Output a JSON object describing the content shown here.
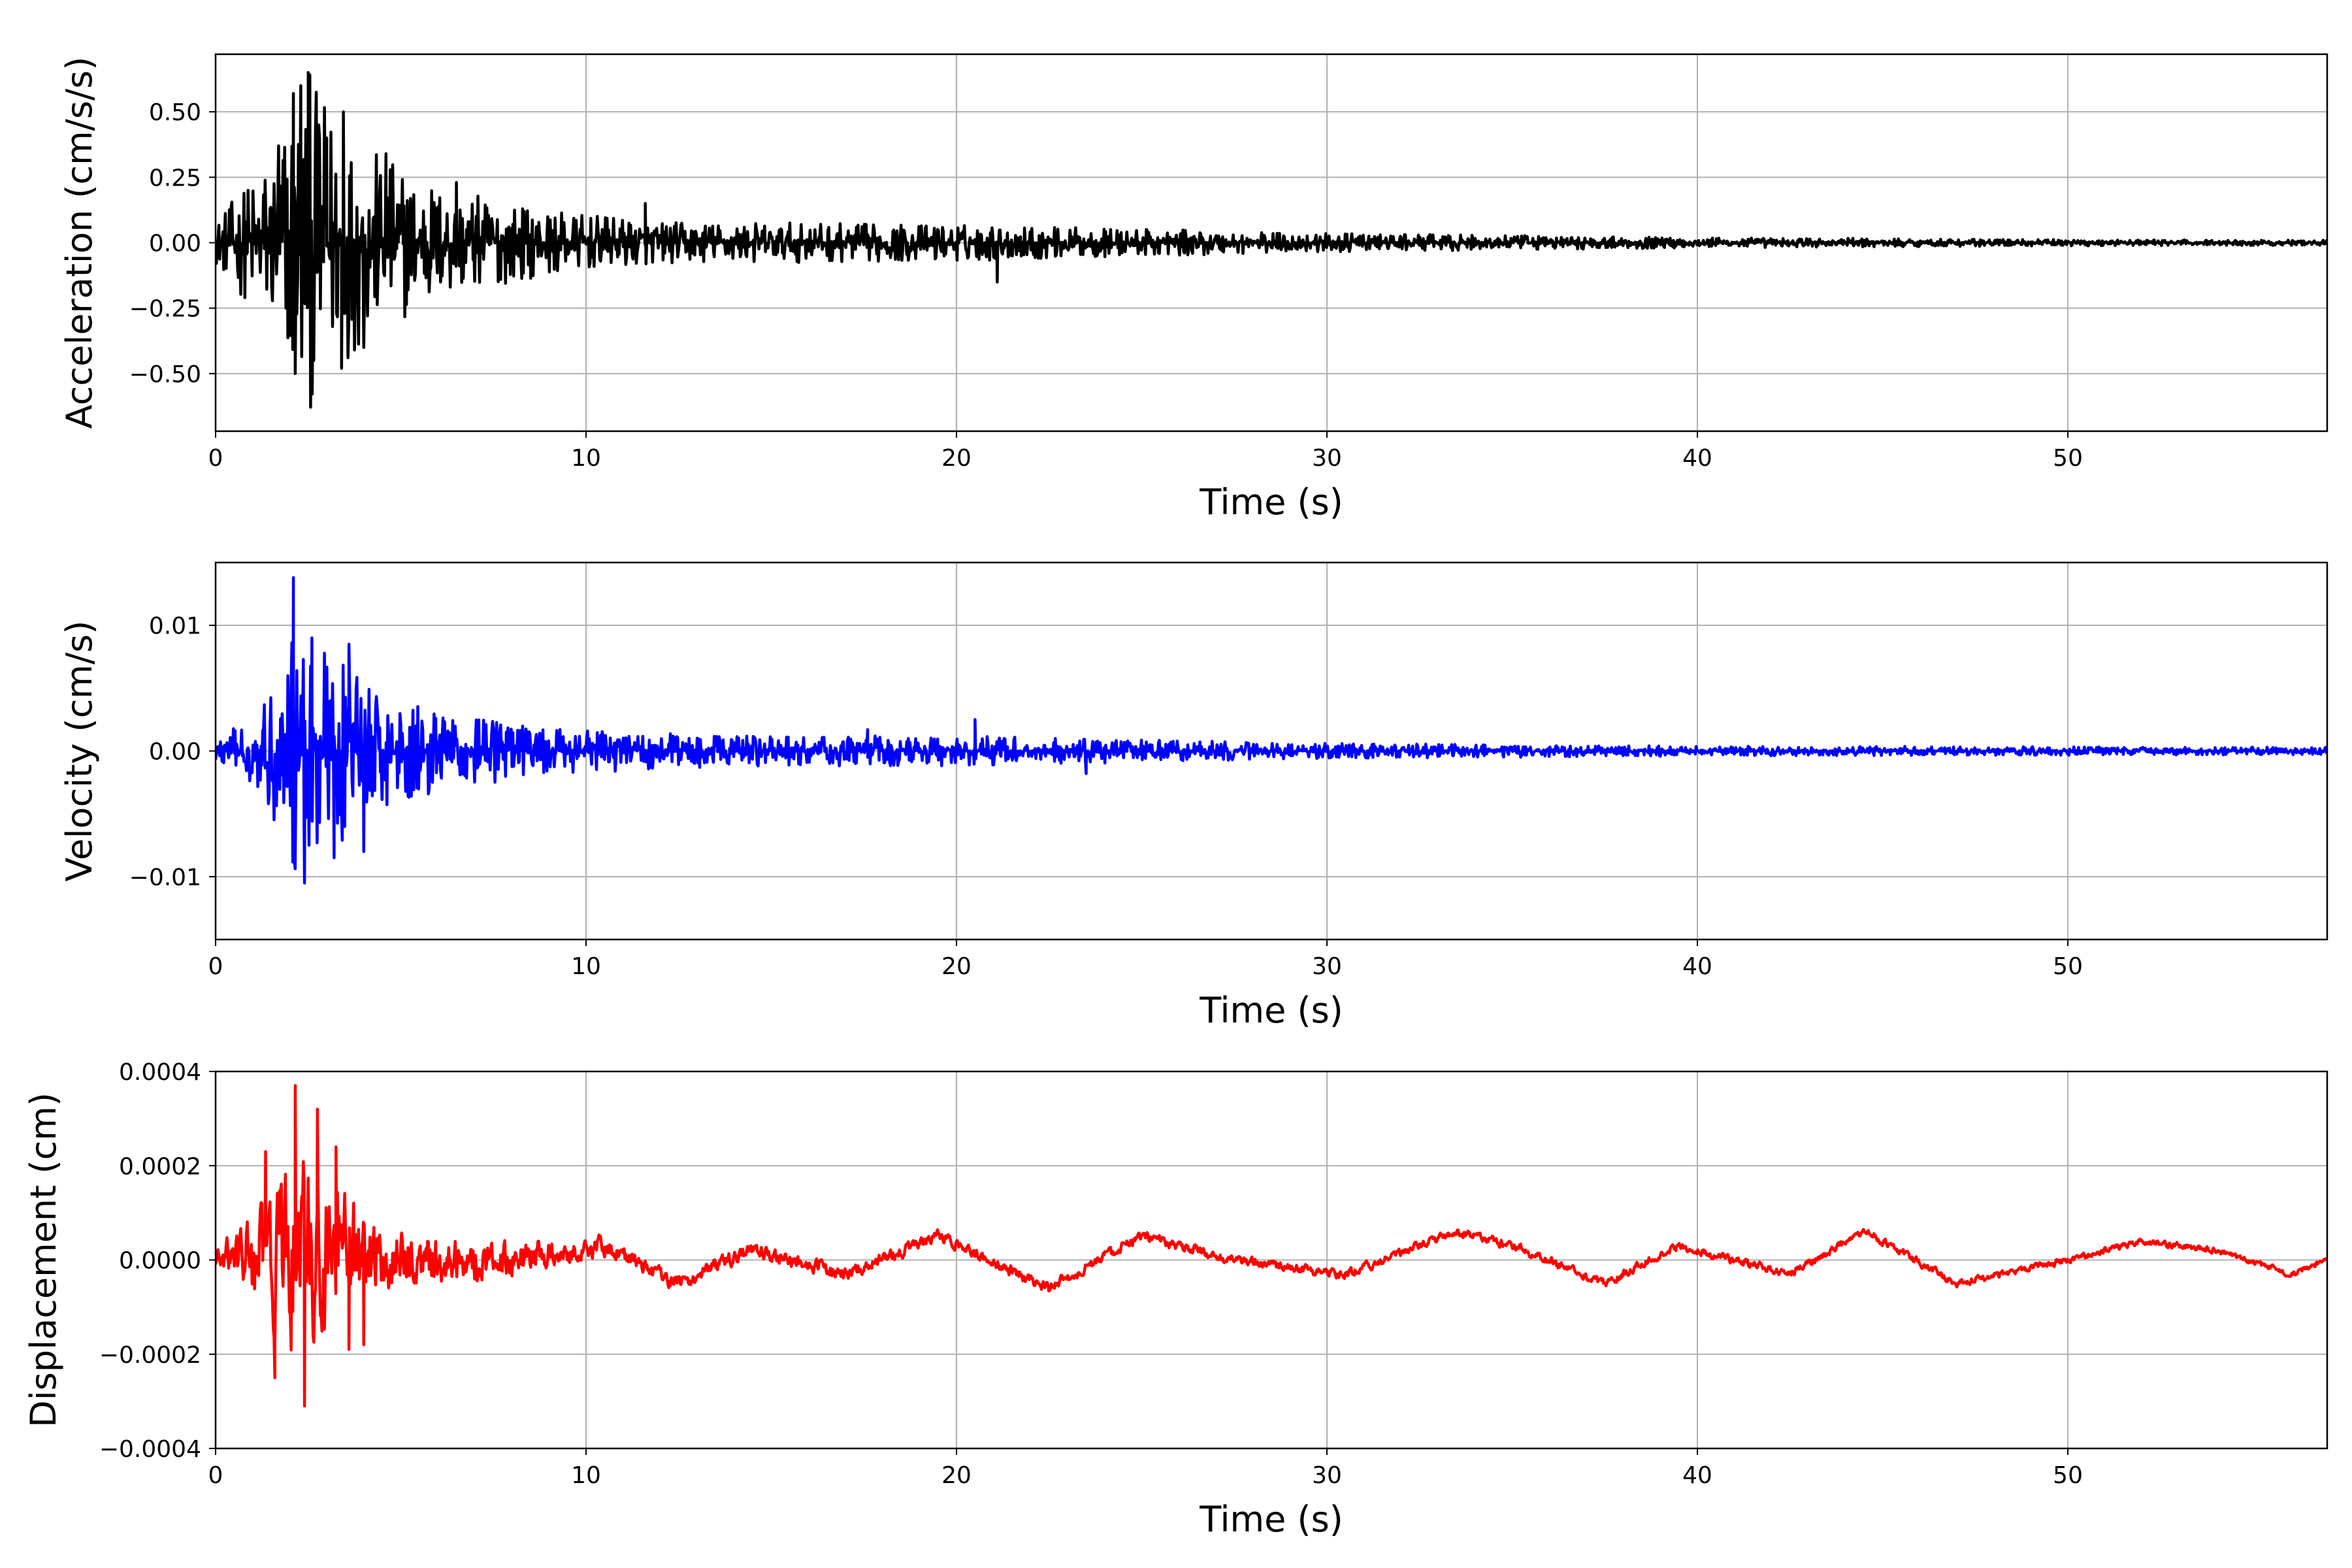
{
  "chart_data": [
    {
      "type": "line",
      "title": "",
      "xlabel": "Time (s)",
      "ylabel": "Acceleration (cm/s/s)",
      "xlim": [
        0,
        57
      ],
      "ylim": [
        -0.72,
        0.72
      ],
      "xticks": [
        0,
        10,
        20,
        30,
        40,
        50
      ],
      "xtick_labels": [
        "0",
        "10",
        "20",
        "30",
        "40",
        "50"
      ],
      "yticks": [
        -0.5,
        -0.25,
        0,
        0.25,
        0.5
      ],
      "ytick_labels": [
        "−0.50",
        "−0.25",
        "0.00",
        "0.25",
        "0.50"
      ],
      "grid": true,
      "legend": "none",
      "series": [
        {
          "color": "#000000",
          "envelope": [
            [
              0,
              0.08
            ],
            [
              1.5,
              0.35
            ],
            [
              2.1,
              0.6
            ],
            [
              2.5,
              0.65
            ],
            [
              3.5,
              0.45
            ],
            [
              4.5,
              0.33
            ],
            [
              6.5,
              0.2
            ],
            [
              9,
              0.12
            ],
            [
              12,
              0.08
            ],
            [
              20,
              0.07
            ],
            [
              30,
              0.035
            ],
            [
              40,
              0.02
            ],
            [
              50,
              0.012
            ],
            [
              57,
              0.01
            ]
          ],
          "peaks": [
            [
              1.7,
              0.37
            ],
            [
              1.9,
              -0.25
            ],
            [
              2.1,
              0.57
            ],
            [
              2.15,
              -0.5
            ],
            [
              2.3,
              0.6
            ],
            [
              2.5,
              0.65
            ],
            [
              2.65,
              -0.45
            ],
            [
              3.0,
              0.4
            ],
            [
              3.4,
              -0.48
            ],
            [
              3.45,
              0.5
            ],
            [
              4.0,
              -0.4
            ],
            [
              4.6,
              0.34
            ],
            [
              6.5,
              0.23
            ],
            [
              11.6,
              0.15
            ],
            [
              21.1,
              -0.15
            ]
          ]
        }
      ]
    },
    {
      "type": "line",
      "title": "",
      "xlabel": "Time (s)",
      "ylabel": "Velocity (cm/s)",
      "xlim": [
        0,
        57
      ],
      "ylim": [
        -0.015,
        0.015
      ],
      "xticks": [
        0,
        10,
        20,
        30,
        40,
        50
      ],
      "xtick_labels": [
        "0",
        "10",
        "20",
        "30",
        "40",
        "50"
      ],
      "yticks": [
        -0.01,
        0,
        0.01
      ],
      "ytick_labels": [
        "−0.01",
        "0.00",
        "0.01"
      ],
      "grid": true,
      "legend": "none",
      "series": [
        {
          "color": "#0000ff",
          "envelope": [
            [
              0,
              0.001
            ],
            [
              1.2,
              0.003
            ],
            [
              1.8,
              0.007
            ],
            [
              2.1,
              0.013
            ],
            [
              2.5,
              0.009
            ],
            [
              3.5,
              0.007
            ],
            [
              4.5,
              0.0045
            ],
            [
              6.5,
              0.003
            ],
            [
              9,
              0.0018
            ],
            [
              15,
              0.0012
            ],
            [
              20,
              0.0012
            ],
            [
              25,
              0.0009
            ],
            [
              30,
              0.0006
            ],
            [
              40,
              0.0004
            ],
            [
              57,
              0.0003
            ]
          ],
          "peaks": [
            [
              2.1,
              0.0138
            ],
            [
              2.4,
              -0.0105
            ],
            [
              2.6,
              0.009
            ],
            [
              3.2,
              -0.0085
            ],
            [
              3.6,
              0.0085
            ],
            [
              4.0,
              -0.008
            ],
            [
              17.6,
              0.0017
            ],
            [
              20.5,
              0.0025
            ],
            [
              23.5,
              -0.0018
            ]
          ]
        }
      ]
    },
    {
      "type": "line",
      "title": "",
      "xlabel": "Time (s)",
      "ylabel": "Displacement (cm)",
      "xlim": [
        0,
        57
      ],
      "ylim": [
        -0.0004,
        0.0004
      ],
      "xticks": [
        0,
        10,
        20,
        30,
        40,
        50
      ],
      "xtick_labels": [
        "0",
        "10",
        "20",
        "30",
        "40",
        "50"
      ],
      "yticks": [
        -0.0004,
        -0.0002,
        0,
        0.0002,
        0.0004
      ],
      "ytick_labels": [
        "−0.0004",
        "−0.0002",
        "0.0000",
        "0.0002",
        "0.0004"
      ],
      "grid": true,
      "legend": "none",
      "series": [
        {
          "color": "#ff0000",
          "trend": [
            [
              0,
              0.0
            ],
            [
              8,
              0.0
            ],
            [
              10.5,
              3e-05
            ],
            [
              12.5,
              -5e-05
            ],
            [
              14.5,
              2e-05
            ],
            [
              17,
              -3e-05
            ],
            [
              19.5,
              5e-05
            ],
            [
              22.5,
              -6e-05
            ],
            [
              25,
              5e-05
            ],
            [
              27.5,
              0.0
            ],
            [
              30.5,
              -3e-05
            ],
            [
              33.5,
              6e-05
            ],
            [
              35,
              3e-05
            ],
            [
              37.5,
              -5e-05
            ],
            [
              39.5,
              3e-05
            ],
            [
              42.5,
              -3e-05
            ],
            [
              44.5,
              6e-05
            ],
            [
              47,
              -5e-05
            ],
            [
              50,
              0.0
            ],
            [
              52,
              4e-05
            ],
            [
              54,
              2e-05
            ],
            [
              56,
              -3e-05
            ],
            [
              57,
              0.0
            ]
          ],
          "envelope": [
            [
              0,
              3e-05
            ],
            [
              1.2,
              0.0002
            ],
            [
              2.2,
              0.00034
            ],
            [
              3.0,
              0.0003
            ],
            [
              4.0,
              0.00016
            ],
            [
              5.5,
              0.0001
            ],
            [
              8,
              6e-05
            ],
            [
              11,
              3e-05
            ],
            [
              20,
              2e-05
            ],
            [
              57,
              1e-05
            ]
          ],
          "peaks": [
            [
              1.35,
              0.00023
            ],
            [
              1.6,
              -0.00025
            ],
            [
              2.15,
              0.00037
            ],
            [
              2.4,
              -0.00031
            ],
            [
              2.75,
              0.00032
            ],
            [
              3.25,
              0.00024
            ],
            [
              3.6,
              -0.00019
            ],
            [
              4.0,
              -0.00018
            ]
          ]
        }
      ]
    }
  ]
}
